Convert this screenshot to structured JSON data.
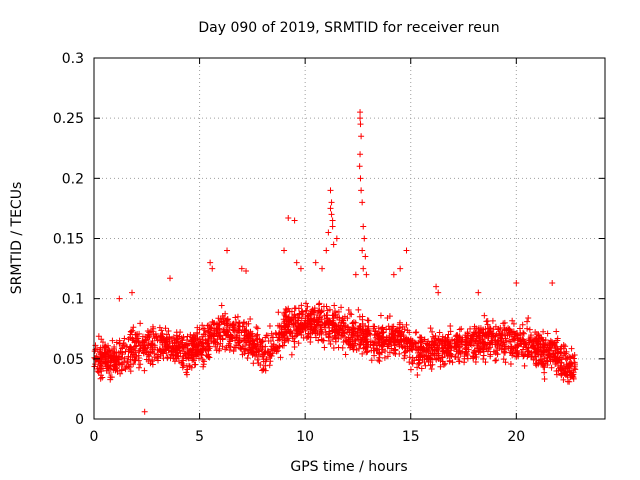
{
  "chart_data": {
    "type": "scatter",
    "title": "Day 090 of 2019, SRMTID for receiver reun",
    "xlabel": "GPS time / hours",
    "ylabel": "SRMTID / TECUs",
    "xlim": [
      0,
      24.2
    ],
    "ylim": [
      0,
      0.3
    ],
    "x_ticks": [
      0,
      5,
      10,
      15,
      20
    ],
    "x_tick_labels": [
      "0",
      "5",
      "10",
      "15",
      "20"
    ],
    "y_ticks": [
      0,
      0.05,
      0.1,
      0.15,
      0.2,
      0.25,
      0.3
    ],
    "y_tick_labels": [
      "0",
      "0.05",
      "0.1",
      "0.15",
      "0.2",
      "0.25",
      "0.3"
    ],
    "grid": true,
    "marker": "+",
    "series": [
      {
        "name": "SRMTID",
        "color": "#ff0000",
        "baseline": [
          [
            0.0,
            0.052
          ],
          [
            0.5,
            0.05
          ],
          [
            1.0,
            0.048
          ],
          [
            1.5,
            0.055
          ],
          [
            2.0,
            0.058
          ],
          [
            2.5,
            0.06
          ],
          [
            3.0,
            0.063
          ],
          [
            3.5,
            0.062
          ],
          [
            4.0,
            0.058
          ],
          [
            4.5,
            0.055
          ],
          [
            5.0,
            0.06
          ],
          [
            5.5,
            0.068
          ],
          [
            6.0,
            0.073
          ],
          [
            6.5,
            0.072
          ],
          [
            7.0,
            0.07
          ],
          [
            7.5,
            0.062
          ],
          [
            8.0,
            0.055
          ],
          [
            8.5,
            0.062
          ],
          [
            9.0,
            0.075
          ],
          [
            9.5,
            0.078
          ],
          [
            10.0,
            0.08
          ],
          [
            10.5,
            0.082
          ],
          [
            11.0,
            0.08
          ],
          [
            11.5,
            0.075
          ],
          [
            12.0,
            0.07
          ],
          [
            12.5,
            0.072
          ],
          [
            13.0,
            0.065
          ],
          [
            13.5,
            0.065
          ],
          [
            14.0,
            0.068
          ],
          [
            14.5,
            0.068
          ],
          [
            15.0,
            0.062
          ],
          [
            15.5,
            0.055
          ],
          [
            16.0,
            0.058
          ],
          [
            16.5,
            0.06
          ],
          [
            17.0,
            0.062
          ],
          [
            17.5,
            0.062
          ],
          [
            18.0,
            0.065
          ],
          [
            18.5,
            0.066
          ],
          [
            19.0,
            0.065
          ],
          [
            19.5,
            0.065
          ],
          [
            20.0,
            0.066
          ],
          [
            20.5,
            0.062
          ],
          [
            21.0,
            0.058
          ],
          [
            21.5,
            0.055
          ],
          [
            22.0,
            0.05
          ],
          [
            22.5,
            0.045
          ],
          [
            22.8,
            0.042
          ]
        ],
        "highlights": [
          [
            12.6,
            0.255
          ],
          [
            12.6,
            0.25
          ],
          [
            12.62,
            0.245
          ],
          [
            12.65,
            0.235
          ],
          [
            12.6,
            0.22
          ],
          [
            12.58,
            0.21
          ],
          [
            12.62,
            0.2
          ],
          [
            12.65,
            0.19
          ],
          [
            12.7,
            0.18
          ],
          [
            12.75,
            0.16
          ],
          [
            12.8,
            0.15
          ],
          [
            12.7,
            0.14
          ],
          [
            12.85,
            0.135
          ],
          [
            12.75,
            0.125
          ],
          [
            12.9,
            0.12
          ],
          [
            11.2,
            0.19
          ],
          [
            11.25,
            0.18
          ],
          [
            11.2,
            0.175
          ],
          [
            11.3,
            0.165
          ],
          [
            11.25,
            0.17
          ],
          [
            11.3,
            0.16
          ],
          [
            11.1,
            0.155
          ],
          [
            11.35,
            0.145
          ],
          [
            11.0,
            0.14
          ],
          [
            11.5,
            0.15
          ],
          [
            9.2,
            0.167
          ],
          [
            9.5,
            0.165
          ],
          [
            9.6,
            0.13
          ],
          [
            9.0,
            0.14
          ],
          [
            9.8,
            0.125
          ],
          [
            2.4,
            0.006
          ],
          [
            6.3,
            0.14
          ],
          [
            5.5,
            0.13
          ],
          [
            5.6,
            0.125
          ],
          [
            7.0,
            0.125
          ],
          [
            7.2,
            0.123
          ],
          [
            3.6,
            0.117
          ],
          [
            14.8,
            0.14
          ],
          [
            14.5,
            0.125
          ],
          [
            14.2,
            0.12
          ],
          [
            16.2,
            0.11
          ],
          [
            16.3,
            0.105
          ],
          [
            20.0,
            0.113
          ],
          [
            21.7,
            0.113
          ],
          [
            18.2,
            0.105
          ],
          [
            10.5,
            0.13
          ],
          [
            10.8,
            0.125
          ],
          [
            12.4,
            0.12
          ],
          [
            1.2,
            0.1
          ],
          [
            1.8,
            0.105
          ]
        ]
      }
    ]
  }
}
